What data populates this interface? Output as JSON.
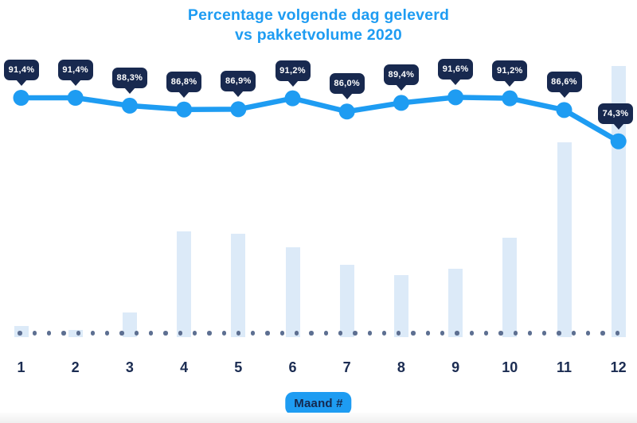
{
  "title": {
    "line1": "Percentage volgende dag geleverd",
    "line2": "vs pakketvolume 2020"
  },
  "x_axis": {
    "badge_label": "Maand #",
    "tick_labels": [
      "1",
      "2",
      "3",
      "4",
      "5",
      "6",
      "7",
      "8",
      "9",
      "10",
      "11",
      "12"
    ]
  },
  "colors": {
    "accent_blue": "#1E9CF2",
    "tooltip_navy": "#18294F",
    "label_navy": "#1B2C52",
    "bar_fill": "#DCEAF8",
    "dot_slate": "#5D6F91",
    "background": "#FFFFFF"
  },
  "chart_data": [
    {
      "type": "line",
      "name": "Percentage volgende dag geleverd",
      "categories": [
        1,
        2,
        3,
        4,
        5,
        6,
        7,
        8,
        9,
        10,
        11,
        12
      ],
      "values": [
        91.4,
        91.4,
        88.3,
        86.8,
        86.9,
        91.2,
        86.0,
        89.4,
        91.6,
        91.2,
        86.6,
        74.3
      ],
      "point_labels": [
        "91,4%",
        "91,4%",
        "88,3%",
        "86,8%",
        "86,9%",
        "91,2%",
        "86,0%",
        "89,4%",
        "91,6%",
        "91,2%",
        "86,6%",
        "74,3%"
      ],
      "unit": "%",
      "xlabel": "Maand #",
      "legend": "none",
      "grid": "off"
    },
    {
      "type": "bar",
      "name": "Pakketvolume 2020",
      "categories": [
        1,
        2,
        3,
        4,
        5,
        6,
        7,
        8,
        9,
        10,
        11,
        12
      ],
      "values": [
        4.1,
        2.6,
        9.1,
        39,
        38,
        33,
        26.7,
        22.9,
        25.2,
        36.7,
        71.8,
        100
      ],
      "ylim": [
        0,
        100
      ],
      "legend": "none",
      "grid": "off"
    }
  ]
}
